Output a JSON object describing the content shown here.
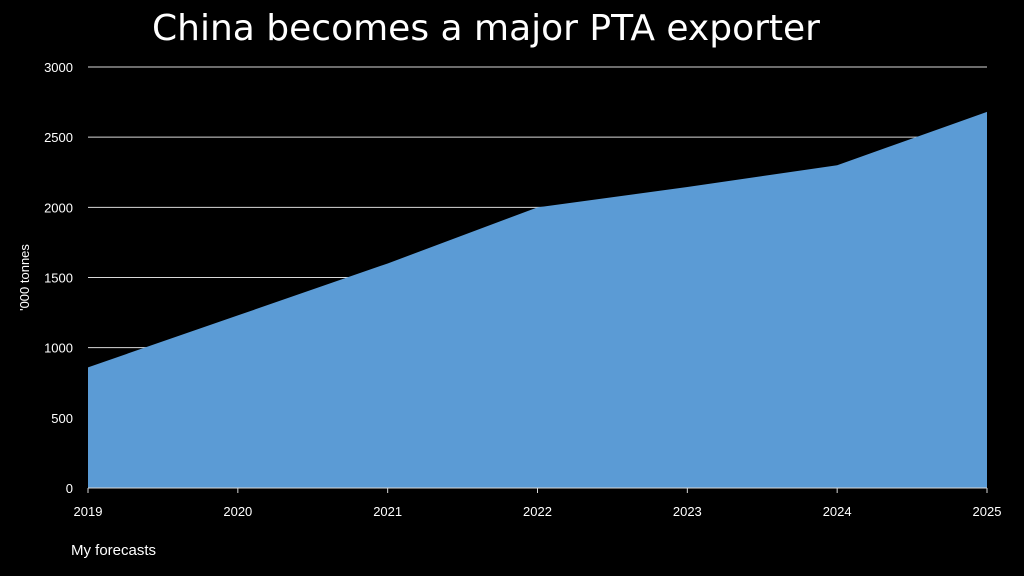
{
  "chart_data": {
    "type": "area",
    "title": "China becomes a major PTA exporter",
    "ylabel": "'000 tonnes",
    "xlabel": "",
    "categories": [
      "2019",
      "2020",
      "2021",
      "2022",
      "2023",
      "2024",
      "2025"
    ],
    "values": [
      860,
      1230,
      1600,
      2000,
      2145,
      2300,
      2680
    ],
    "ylim": [
      0,
      3000
    ],
    "yticks": [
      "0",
      "500",
      "1000",
      "1500",
      "2000",
      "2500",
      "3000"
    ],
    "grid": true,
    "area_color": "#5B9BD5",
    "background_color": "#000000",
    "footnote": "My forecasts"
  }
}
